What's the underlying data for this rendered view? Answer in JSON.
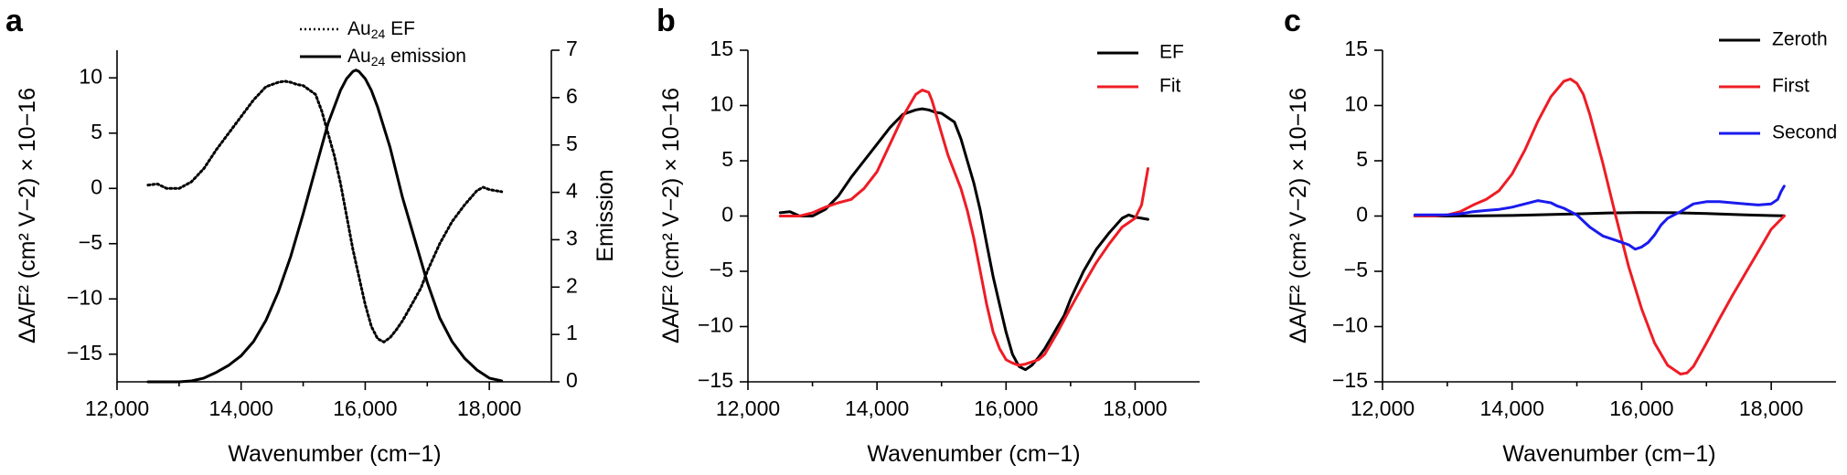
{
  "figure": {
    "panel_labels": [
      "a",
      "b",
      "c"
    ],
    "x_axis_label": "Wavenumber (cm−1)",
    "y_axis_label": "ΔA/F² (cm² V−2) × 10−16"
  },
  "chart_data": [
    {
      "type": "line",
      "panel": "a",
      "xlabel": "Wavenumber (cm−1)",
      "ylabel": "ΔA/F² (cm² V−2) × 10−16",
      "y2label": "Emission",
      "xlim": [
        12000,
        19000
      ],
      "ylim": [
        -17.5,
        12.5
      ],
      "y2lim": [
        0,
        7
      ],
      "xticks": [
        12000,
        14000,
        16000,
        18000
      ],
      "xtick_labels": [
        "12,000",
        "14,000",
        "16,000",
        "18,000"
      ],
      "yticks": [
        -15,
        -10,
        -5,
        0,
        5,
        10
      ],
      "ytick_labels": [
        "−15",
        "−10",
        "−5",
        "0",
        "5",
        "10"
      ],
      "y2ticks": [
        0,
        1,
        2,
        3,
        4,
        5,
        6,
        7
      ],
      "y2tick_labels": [
        "0",
        "1",
        "2",
        "3",
        "4",
        "5",
        "6",
        "7"
      ],
      "legend_position": "top-center",
      "series": [
        {
          "name": "Au24 EF",
          "legend_main": "Au",
          "legend_sub": "24",
          "legend_rest": " EF",
          "axis": "left",
          "color": "#000000",
          "style": "dotted",
          "x": [
            12500,
            12650,
            12800,
            13000,
            13200,
            13400,
            13600,
            13800,
            14000,
            14200,
            14400,
            14600,
            14700,
            14800,
            14900,
            15000,
            15200,
            15300,
            15400,
            15500,
            15600,
            15700,
            15800,
            15900,
            16000,
            16100,
            16200,
            16300,
            16400,
            16500,
            16600,
            16700,
            16800,
            16900,
            17000,
            17200,
            17400,
            17600,
            17800,
            17900,
            18000,
            18100,
            18200
          ],
          "y": [
            0.3,
            0.4,
            0.0,
            0.0,
            0.6,
            1.8,
            3.5,
            5.0,
            6.5,
            8.0,
            9.2,
            9.6,
            9.7,
            9.6,
            9.4,
            9.3,
            8.5,
            7.0,
            5.0,
            3.0,
            0.5,
            -2.5,
            -5.5,
            -8.0,
            -10.5,
            -12.5,
            -13.6,
            -13.9,
            -13.5,
            -12.8,
            -12.0,
            -11.0,
            -10.0,
            -9.0,
            -7.5,
            -5.0,
            -3.0,
            -1.5,
            -0.2,
            0.1,
            -0.1,
            -0.2,
            -0.3
          ]
        },
        {
          "name": "Au24 emission",
          "legend_main": "Au",
          "legend_sub": "24",
          "legend_rest": " emission",
          "axis": "right",
          "color": "#000000",
          "style": "solid",
          "x": [
            12500,
            12800,
            13000,
            13200,
            13400,
            13600,
            13800,
            14000,
            14200,
            14400,
            14600,
            14800,
            15000,
            15200,
            15400,
            15600,
            15700,
            15800,
            15850,
            15900,
            16000,
            16100,
            16200,
            16400,
            16600,
            16800,
            17000,
            17200,
            17400,
            17600,
            17800,
            18000,
            18200
          ],
          "y": [
            0.0,
            0.0,
            0.0,
            0.02,
            0.08,
            0.2,
            0.35,
            0.55,
            0.85,
            1.3,
            1.9,
            2.65,
            3.55,
            4.5,
            5.45,
            6.15,
            6.4,
            6.55,
            6.58,
            6.55,
            6.4,
            6.15,
            5.8,
            4.95,
            3.9,
            3.0,
            2.1,
            1.35,
            0.85,
            0.5,
            0.25,
            0.08,
            0.02
          ]
        }
      ]
    },
    {
      "type": "line",
      "panel": "b",
      "xlabel": "Wavenumber (cm−1)",
      "ylabel": "ΔA/F² (cm² V−2) × 10−16",
      "xlim": [
        12000,
        19000
      ],
      "ylim": [
        -15,
        15
      ],
      "xticks": [
        12000,
        14000,
        16000,
        18000
      ],
      "xtick_labels": [
        "12,000",
        "14,000",
        "16,000",
        "18,000"
      ],
      "yticks": [
        -15,
        -10,
        -5,
        0,
        5,
        10,
        15
      ],
      "ytick_labels": [
        "−15",
        "−10",
        "−5",
        "0",
        "5",
        "10",
        "15"
      ],
      "legend_position": "top-right",
      "series": [
        {
          "name": "EF",
          "color": "#000000",
          "style": "solid",
          "x": [
            12500,
            12650,
            12800,
            13000,
            13200,
            13400,
            13600,
            13800,
            14000,
            14200,
            14400,
            14600,
            14700,
            14800,
            14900,
            15000,
            15200,
            15300,
            15400,
            15500,
            15600,
            15700,
            15800,
            15900,
            16000,
            16100,
            16200,
            16300,
            16400,
            16500,
            16600,
            16700,
            16800,
            16900,
            17000,
            17200,
            17400,
            17600,
            17800,
            17900,
            18000,
            18100,
            18200
          ],
          "y": [
            0.3,
            0.4,
            0.0,
            0.0,
            0.6,
            1.8,
            3.5,
            5.0,
            6.5,
            8.0,
            9.2,
            9.6,
            9.7,
            9.6,
            9.4,
            9.3,
            8.5,
            7.0,
            5.0,
            3.0,
            0.5,
            -2.5,
            -5.5,
            -8.0,
            -10.5,
            -12.5,
            -13.6,
            -13.9,
            -13.5,
            -12.8,
            -12.0,
            -11.0,
            -10.0,
            -9.0,
            -7.5,
            -5.0,
            -3.0,
            -1.5,
            -0.2,
            0.1,
            -0.1,
            -0.2,
            -0.3
          ]
        },
        {
          "name": "Fit",
          "color": "#ee1c25",
          "style": "solid",
          "x": [
            12500,
            12800,
            13000,
            13200,
            13400,
            13600,
            13800,
            14000,
            14200,
            14400,
            14600,
            14700,
            14800,
            14850,
            14900,
            15000,
            15100,
            15200,
            15300,
            15400,
            15500,
            15600,
            15700,
            15800,
            15900,
            16000,
            16100,
            16200,
            16300,
            16400,
            16500,
            16600,
            16800,
            17000,
            17200,
            17400,
            17600,
            17800,
            18000,
            18100,
            18200
          ],
          "y": [
            0.0,
            0.0,
            0.3,
            0.8,
            1.2,
            1.5,
            2.5,
            4.0,
            6.5,
            9.0,
            11.0,
            11.4,
            11.2,
            10.5,
            9.5,
            7.5,
            5.5,
            4.0,
            2.5,
            0.5,
            -2.0,
            -5.0,
            -8.0,
            -10.5,
            -12.0,
            -13.0,
            -13.3,
            -13.5,
            -13.4,
            -13.2,
            -13.0,
            -12.5,
            -10.5,
            -8.3,
            -6.2,
            -4.2,
            -2.5,
            -1.0,
            -0.2,
            1.0,
            4.3
          ]
        }
      ]
    },
    {
      "type": "line",
      "panel": "c",
      "xlabel": "Wavenumber (cm−1)",
      "ylabel": "ΔA/F² (cm² V−2) × 10−16",
      "xlim": [
        12000,
        19000
      ],
      "ylim": [
        -15,
        15
      ],
      "xticks": [
        12000,
        14000,
        16000,
        18000
      ],
      "xtick_labels": [
        "12,000",
        "14,000",
        "16,000",
        "18,000"
      ],
      "yticks": [
        -15,
        -10,
        -5,
        0,
        5,
        10,
        15
      ],
      "ytick_labels": [
        "−15",
        "−10",
        "−5",
        "0",
        "5",
        "10",
        "15"
      ],
      "legend_position": "top-right",
      "series": [
        {
          "name": "Zeroth",
          "color": "#000000",
          "style": "solid",
          "x": [
            12500,
            13000,
            13500,
            14000,
            14500,
            15000,
            15500,
            16000,
            16500,
            17000,
            17500,
            18000,
            18200
          ],
          "y": [
            0.0,
            0.0,
            0.02,
            0.05,
            0.12,
            0.2,
            0.28,
            0.32,
            0.3,
            0.22,
            0.12,
            0.04,
            0.02
          ]
        },
        {
          "name": "First",
          "color": "#ee1c25",
          "style": "solid",
          "x": [
            12500,
            12800,
            13000,
            13200,
            13400,
            13600,
            13800,
            14000,
            14200,
            14400,
            14600,
            14800,
            14900,
            15000,
            15100,
            15200,
            15400,
            15600,
            15800,
            16000,
            16200,
            16400,
            16600,
            16700,
            16800,
            17000,
            17200,
            17400,
            17600,
            17800,
            18000,
            18200
          ],
          "y": [
            0.0,
            0.0,
            0.1,
            0.4,
            1.0,
            1.5,
            2.3,
            3.8,
            6.0,
            8.6,
            10.8,
            12.2,
            12.4,
            12.0,
            11.0,
            9.2,
            4.8,
            0.0,
            -4.6,
            -8.4,
            -11.5,
            -13.5,
            -14.3,
            -14.2,
            -13.6,
            -11.5,
            -9.3,
            -7.2,
            -5.2,
            -3.2,
            -1.2,
            0.0
          ]
        },
        {
          "name": "Second",
          "color": "#1a1aee",
          "style": "solid",
          "x": [
            12500,
            12800,
            13000,
            13200,
            13400,
            13600,
            13800,
            14000,
            14200,
            14400,
            14500,
            14600,
            14700,
            14800,
            15000,
            15200,
            15400,
            15600,
            15800,
            15900,
            16000,
            16100,
            16200,
            16300,
            16400,
            16600,
            16800,
            17000,
            17200,
            17400,
            17600,
            17800,
            18000,
            18100,
            18150,
            18200
          ],
          "y": [
            0.1,
            0.1,
            0.1,
            0.2,
            0.4,
            0.5,
            0.6,
            0.8,
            1.1,
            1.4,
            1.3,
            1.2,
            0.9,
            0.7,
            0.1,
            -1.0,
            -1.8,
            -2.2,
            -2.6,
            -3.0,
            -2.8,
            -2.4,
            -1.7,
            -0.8,
            -0.2,
            0.4,
            1.1,
            1.3,
            1.3,
            1.2,
            1.1,
            1.0,
            1.1,
            1.5,
            2.2,
            2.7
          ]
        }
      ]
    }
  ]
}
